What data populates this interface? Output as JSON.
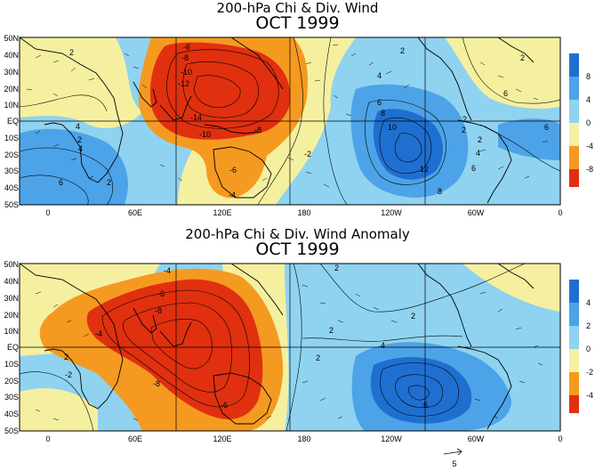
{
  "panels": [
    {
      "title": "200-hPa Chi & Div. Wind",
      "subtitle": "OCT 1999",
      "lat_labels": [
        "50N",
        "40N",
        "30N",
        "20N",
        "10N",
        "EQ",
        "10S",
        "20S",
        "30S",
        "40S",
        "50S"
      ],
      "lon_labels": [
        "0",
        "60E",
        "120E",
        "180",
        "120W",
        "60W",
        "0"
      ],
      "colorbar": {
        "ticks": [
          "8",
          "4",
          "0",
          "-4",
          "-8"
        ],
        "colors": [
          "#1f6fd1",
          "#4da3e8",
          "#8fd3f0",
          "#f5f0a0",
          "#f59a20",
          "#e03010"
        ]
      },
      "contour_labels": [
        "-6",
        "-8",
        "-10",
        "-12",
        "-14",
        "-10",
        "-8",
        "-6",
        "-4",
        "-2",
        "2",
        "4",
        "6",
        "8",
        "10",
        "12",
        "8",
        "6",
        "4",
        "2",
        "2",
        "2",
        "6",
        "4",
        "2",
        "2",
        "6",
        "4",
        "2",
        "2",
        "6"
      ]
    },
    {
      "title": "200-hPa Chi & Div. Wind Anomaly",
      "subtitle": "OCT 1999",
      "lat_labels": [
        "50N",
        "40N",
        "30N",
        "20N",
        "10N",
        "EQ",
        "10S",
        "20S",
        "30S",
        "40S",
        "50S"
      ],
      "lon_labels": [
        "0",
        "60E",
        "120E",
        "180",
        "120W",
        "60W",
        "0"
      ],
      "colorbar": {
        "ticks": [
          "4",
          "2",
          "0",
          "-2",
          "-4"
        ],
        "colors": [
          "#1f6fd1",
          "#4da3e8",
          "#8fd3f0",
          "#f5f0a0",
          "#f59a20",
          "#e03010"
        ]
      },
      "contour_labels": [
        "-4",
        "-6",
        "-8",
        "-4",
        "-2",
        "-8",
        "-6",
        "2",
        "2",
        "2",
        "2",
        "4",
        "6",
        "2"
      ]
    }
  ],
  "reference_vector": {
    "label": "5"
  }
}
